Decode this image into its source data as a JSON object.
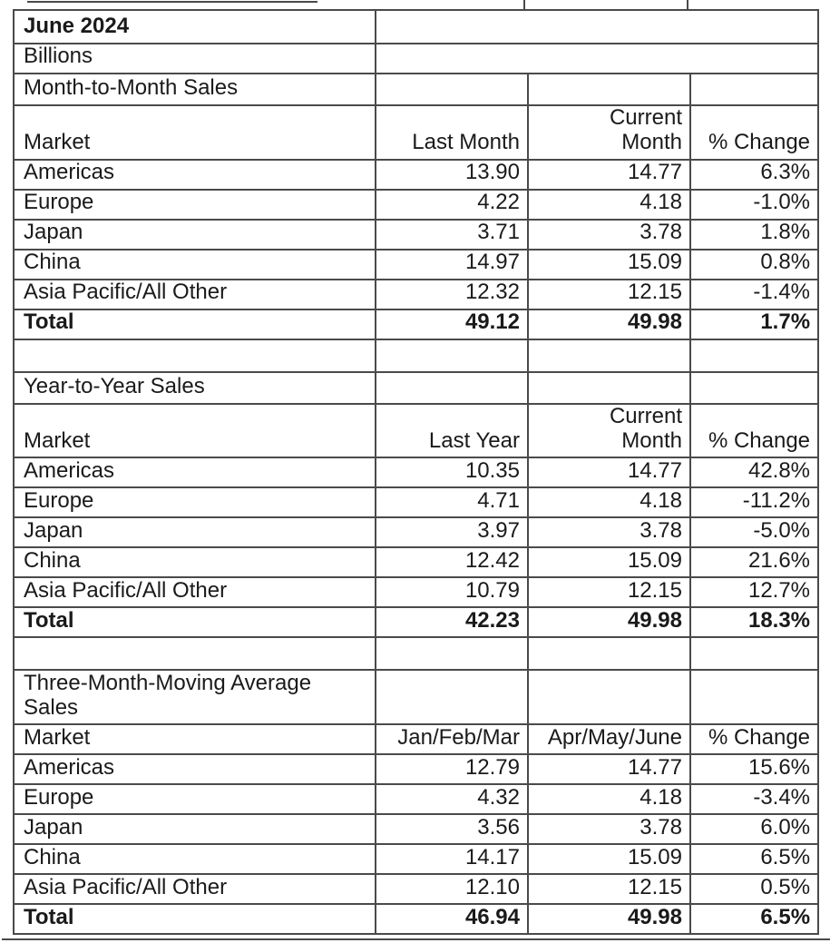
{
  "report": {
    "period": "June 2024",
    "units": "Billions"
  },
  "sections": [
    {
      "title_lines": [
        "Month-to-Month Sales"
      ],
      "headers": [
        [
          "Market"
        ],
        [
          "Last Month"
        ],
        [
          "Current",
          "Month"
        ],
        [
          "% Change"
        ]
      ],
      "rows": [
        {
          "cells": [
            "Americas",
            "13.90",
            "14.77",
            "6.3%"
          ],
          "bold": false
        },
        {
          "cells": [
            "Europe",
            "4.22",
            "4.18",
            "-1.0%"
          ],
          "bold": false
        },
        {
          "cells": [
            "Japan",
            "3.71",
            "3.78",
            "1.8%"
          ],
          "bold": false
        },
        {
          "cells": [
            "China",
            "14.97",
            "15.09",
            "0.8%"
          ],
          "bold": false
        },
        {
          "cells": [
            "Asia Pacific/All Other",
            "12.32",
            "12.15",
            "-1.4%"
          ],
          "bold": false
        },
        {
          "cells": [
            "Total",
            "49.12",
            "49.98",
            "1.7%"
          ],
          "bold": true
        }
      ]
    },
    {
      "title_lines": [
        "Year-to-Year Sales"
      ],
      "headers": [
        [
          "Market"
        ],
        [
          "Last Year"
        ],
        [
          "Current",
          "Month"
        ],
        [
          "% Change"
        ]
      ],
      "rows": [
        {
          "cells": [
            "Americas",
            "10.35",
            "14.77",
            "42.8%"
          ],
          "bold": false
        },
        {
          "cells": [
            "Europe",
            "4.71",
            "4.18",
            "-11.2%"
          ],
          "bold": false
        },
        {
          "cells": [
            "Japan",
            "3.97",
            "3.78",
            "-5.0%"
          ],
          "bold": false
        },
        {
          "cells": [
            "China",
            "12.42",
            "15.09",
            "21.6%"
          ],
          "bold": false
        },
        {
          "cells": [
            "Asia Pacific/All Other",
            "10.79",
            "12.15",
            "12.7%"
          ],
          "bold": false
        },
        {
          "cells": [
            "Total",
            "42.23",
            "49.98",
            "18.3%"
          ],
          "bold": true
        }
      ]
    },
    {
      "title_lines": [
        "Three-Month-Moving Average",
        "Sales"
      ],
      "headers": [
        [
          "Market"
        ],
        [
          "Jan/Feb/Mar"
        ],
        [
          "Apr/May/June"
        ],
        [
          "% Change"
        ]
      ],
      "rows": [
        {
          "cells": [
            "Americas",
            "12.79",
            "14.77",
            "15.6%"
          ],
          "bold": false
        },
        {
          "cells": [
            "Europe",
            "4.32",
            "4.18",
            "-3.4%"
          ],
          "bold": false
        },
        {
          "cells": [
            "Japan",
            "3.56",
            "3.78",
            "6.0%"
          ],
          "bold": false
        },
        {
          "cells": [
            "China",
            "14.17",
            "15.09",
            "6.5%"
          ],
          "bold": false
        },
        {
          "cells": [
            "Asia Pacific/All Other",
            "12.10",
            "12.15",
            "0.5%"
          ],
          "bold": false
        },
        {
          "cells": [
            "Total",
            "46.94",
            "49.98",
            "6.5%"
          ],
          "bold": true
        }
      ]
    }
  ],
  "colors": {
    "border": "#4a4a4a",
    "text": "#1a1a1a",
    "background": "#ffffff"
  }
}
